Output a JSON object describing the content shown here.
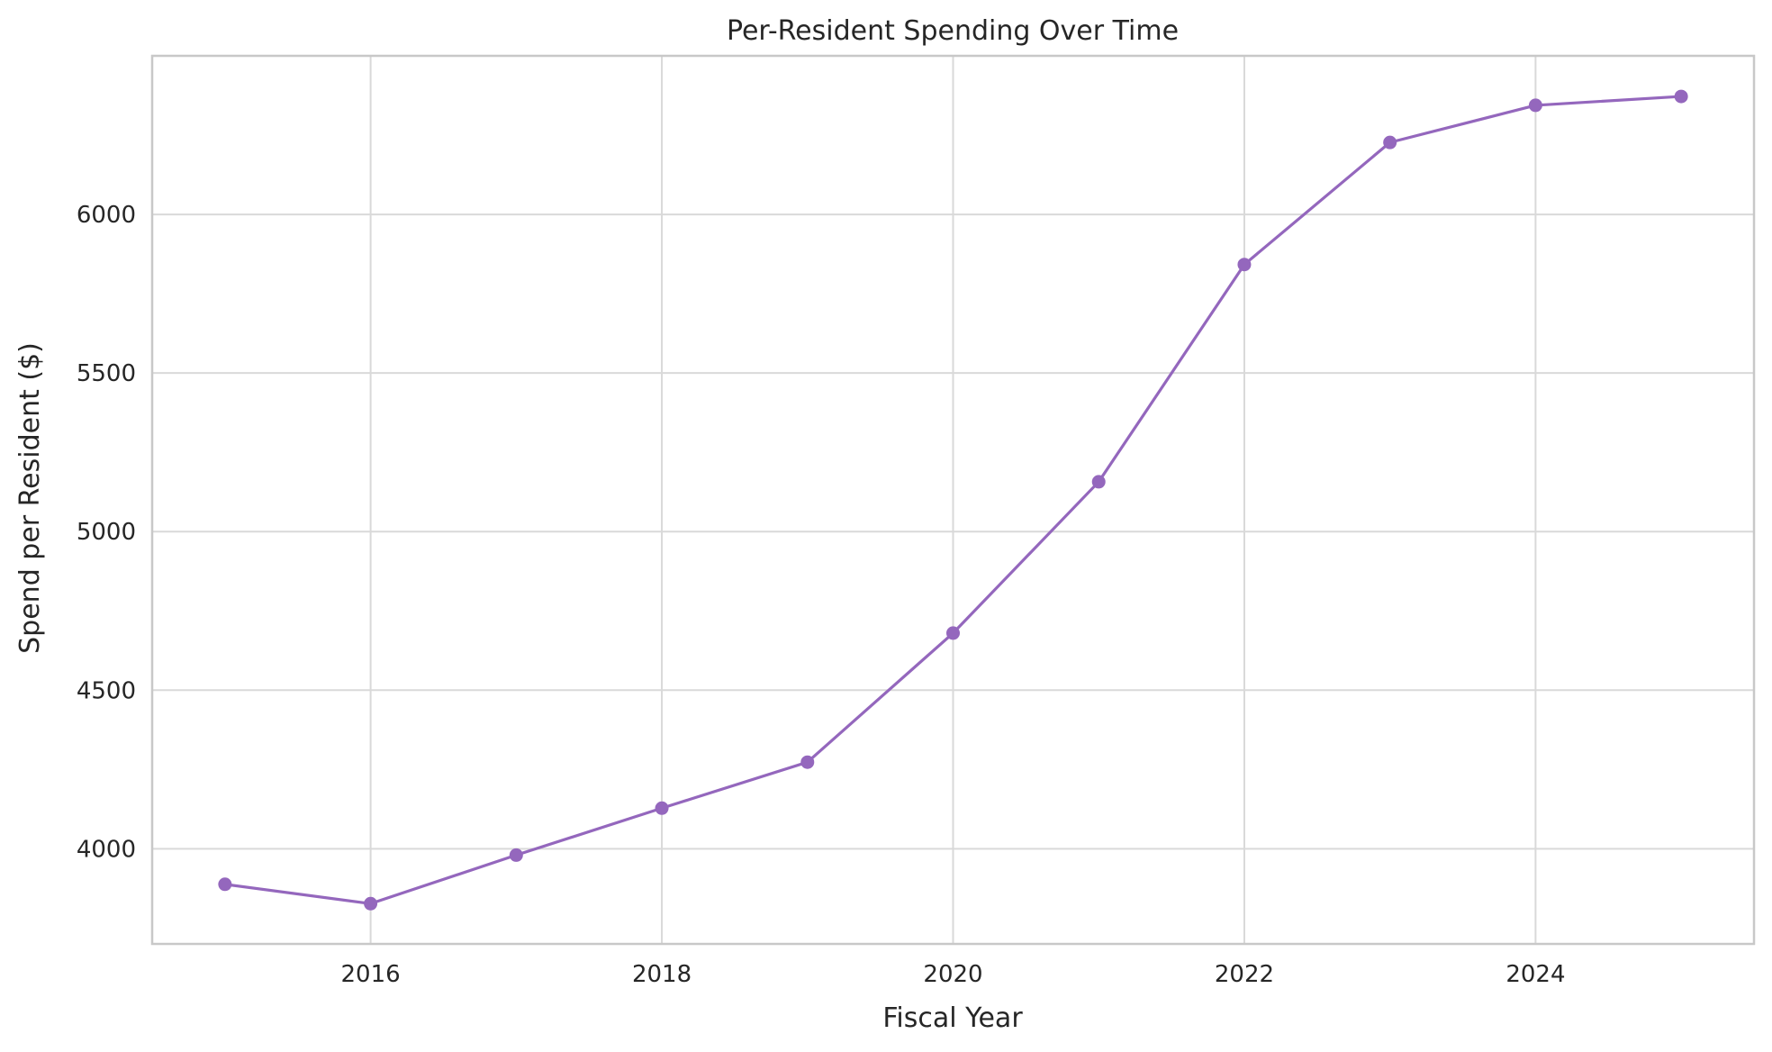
{
  "chart_data": {
    "type": "line",
    "title": "Per-Resident Spending Over Time",
    "xlabel": "Fiscal Year",
    "ylabel": "Spend per Resident ($)",
    "x": [
      2015,
      2016,
      2017,
      2018,
      2019,
      2020,
      2021,
      2022,
      2023,
      2024,
      2025
    ],
    "series": [
      {
        "values": [
          3888,
          3827,
          3980,
          4128,
          4273,
          4680,
          5157,
          5842,
          6227,
          6344,
          6372
        ]
      }
    ],
    "xlim": [
      2014.5,
      2025.5
    ],
    "ylim": [
      3700,
      6500
    ],
    "x_ticks": [
      "2016",
      "2018",
      "2020",
      "2022",
      "2024"
    ],
    "y_ticks": [
      "4000",
      "4500",
      "5000",
      "5500",
      "6000"
    ],
    "grid": true,
    "legend": "none",
    "colors": {
      "line": "#9467bd",
      "grid": "#d9d9d9",
      "frame": "#c8c8c8"
    }
  }
}
